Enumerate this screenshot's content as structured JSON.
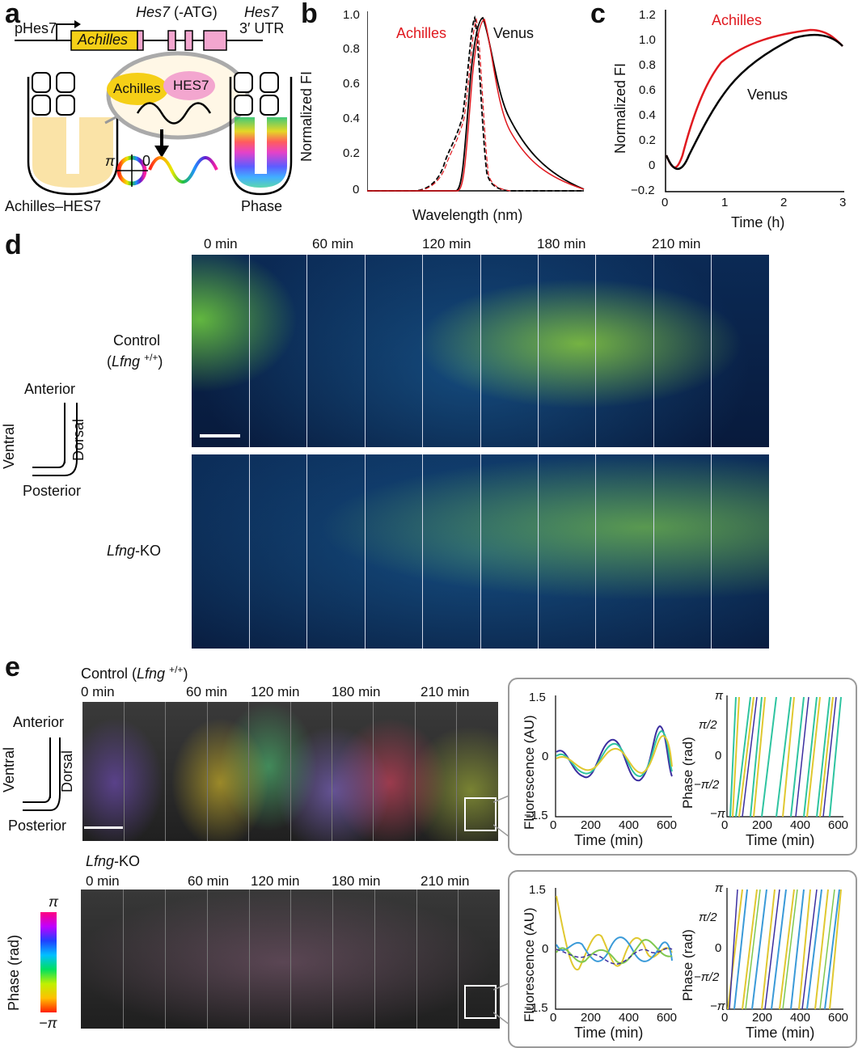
{
  "panel_labels": {
    "a": "a",
    "b": "b",
    "c": "c",
    "d": "d",
    "e": "e"
  },
  "panel_a": {
    "promoter": "pHes7",
    "gene_box": "Achilles",
    "hes7_atg_gene": "Hes7",
    "hes7_atg_note": "(-ATG)",
    "utr_gene": "Hes7",
    "utr_label": "3′ UTR",
    "bubble_achilles": "Achilles",
    "bubble_hes7": "HES7",
    "pi": "π",
    "zero": "0",
    "left_caption": "Achilles–HES7",
    "right_caption": "Phase"
  },
  "panel_b": {
    "ylabel": "Normalized FI",
    "xlabel": "Wavelength (nm)",
    "series_achilles": "Achilles",
    "series_venus": "Venus",
    "yticks": [
      "0",
      "0.2",
      "0.4",
      "0.6",
      "0.8",
      "1.0"
    ]
  },
  "panel_c": {
    "ylabel": "Normalized FI",
    "xlabel": "Time (h)",
    "series_achilles": "Achilles",
    "series_venus": "Venus",
    "yticks": [
      "−0.2",
      "0",
      "0.2",
      "0.4",
      "0.6",
      "0.8",
      "1.0",
      "1.2"
    ],
    "xticks": [
      "0",
      "1",
      "2",
      "3"
    ]
  },
  "panel_d": {
    "times": [
      "0 min",
      "60 min",
      "120 min",
      "180 min",
      "210 min"
    ],
    "row1_label_a": "Control",
    "row1_label_gene": "Lfng",
    "row1_label_sup": "+/+",
    "row2_label_gene": "Lfng",
    "row2_label_rest": "-KO",
    "orient": {
      "anterior": "Anterior",
      "posterior": "Posterior",
      "ventral": "Ventral",
      "dorsal": "Dorsal"
    }
  },
  "panel_e": {
    "control_title": "Control (",
    "control_gene": "Lfng",
    "control_sup": "+/+",
    "control_close": ")",
    "ko_gene": "Lfng",
    "ko_rest": "-KO",
    "times": [
      "0 min",
      "60 min",
      "120 min",
      "180 min",
      "210 min"
    ],
    "orient": {
      "anterior": "Anterior",
      "posterior": "Posterior",
      "ventral": "Ventral",
      "dorsal": "Dorsal"
    },
    "colorbar_label": "Phase (rad)",
    "colorbar_top": "π",
    "colorbar_bottom": "−π",
    "fluor_ylabel": "Fluorescence (AU)",
    "phase_ylabel": "Phase (rad)",
    "time_xlabel": "Time (min)",
    "fluor_yticks": [
      "1.5",
      "0",
      "−1.5"
    ],
    "phase_yticks": [
      "π",
      "π/2",
      "0",
      "−π/2",
      "−π"
    ],
    "xticks": [
      "0",
      "200",
      "400",
      "600"
    ]
  },
  "chart_data": [
    {
      "type": "line",
      "series": [
        {
          "name": "Achilles",
          "x": [
            470,
            490,
            500,
            510,
            515,
            520,
            525,
            530,
            535,
            540,
            550,
            560,
            580,
            600,
            650
          ],
          "values": [
            0.0,
            0.22,
            0.4,
            0.7,
            0.95,
            1.0,
            0.9,
            0.55,
            0.22,
            0.08,
            0.02,
            0.01,
            0.0,
            0.0,
            0.0
          ]
        },
        {
          "name": "Venus",
          "x": [
            500,
            510,
            515,
            520,
            525,
            530,
            535,
            540,
            545,
            550,
            560,
            570,
            580,
            600,
            650
          ],
          "values": [
            0.0,
            0.05,
            0.2,
            0.6,
            0.95,
            1.0,
            0.95,
            0.78,
            0.62,
            0.5,
            0.38,
            0.28,
            0.2,
            0.1,
            0.0
          ]
        }
      ],
      "ylim": [
        0,
        1.0
      ],
      "ylabel": "Normalized FI",
      "xlabel": "Wavelength (nm)"
    },
    {
      "type": "line",
      "series": [
        {
          "name": "Achilles",
          "x": [
            0,
            0.2,
            0.4,
            0.6,
            0.8,
            1.0,
            1.5,
            2.0,
            2.5,
            3.0
          ],
          "values": [
            0.0,
            -0.05,
            0.25,
            0.5,
            0.7,
            0.85,
            0.95,
            1.0,
            1.0,
            0.97
          ]
        },
        {
          "name": "Venus",
          "x": [
            0,
            0.2,
            0.4,
            0.6,
            0.8,
            1.0,
            1.5,
            2.0,
            2.5,
            3.0
          ],
          "values": [
            0.0,
            -0.05,
            0.05,
            0.2,
            0.4,
            0.6,
            0.8,
            0.95,
            1.0,
            0.97
          ]
        }
      ],
      "xlim": [
        0,
        3
      ],
      "ylim": [
        -0.2,
        1.2
      ],
      "ylabel": "Normalized FI",
      "xlabel": "Time (h)"
    }
  ]
}
